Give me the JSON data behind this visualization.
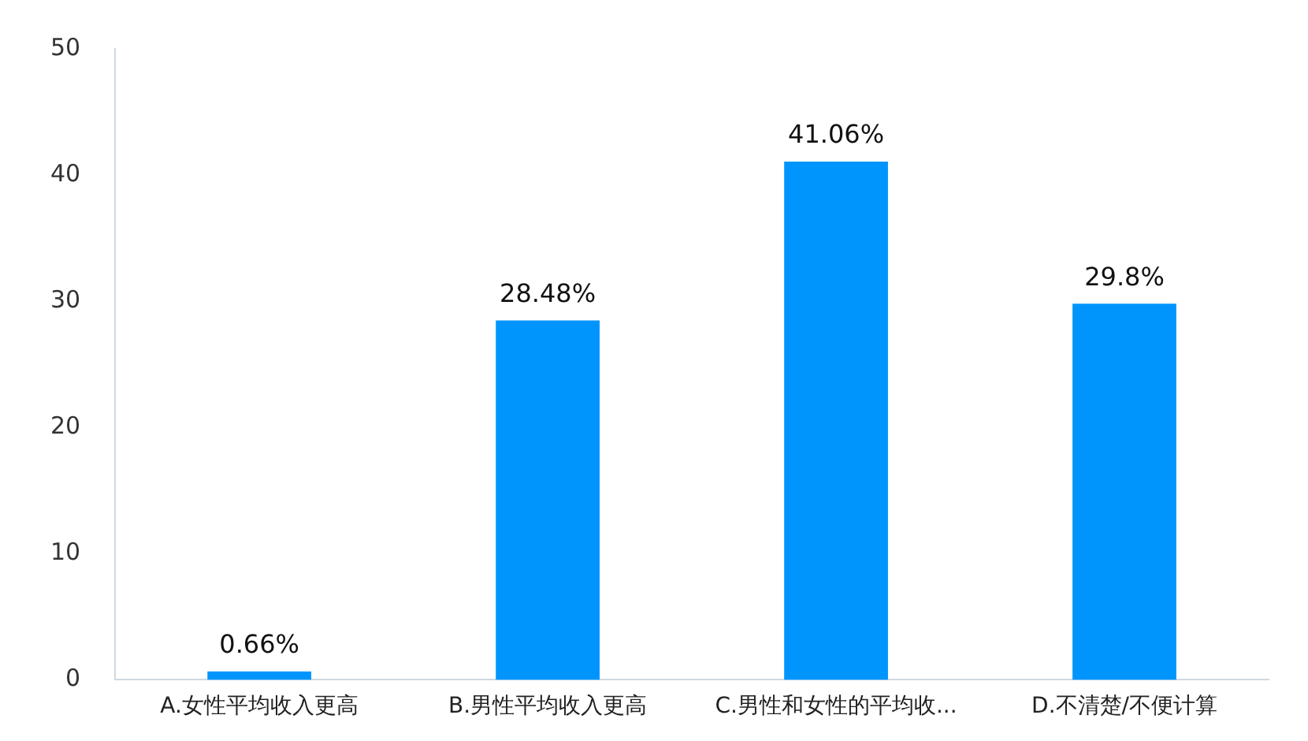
{
  "chart_data": {
    "type": "bar",
    "categories": [
      "A.女性平均收入更高",
      "B.男性平均收入更高",
      "C.男性和女性的平均收...",
      "D.不清楚/不便计算"
    ],
    "values": [
      0.66,
      28.48,
      41.06,
      29.8
    ],
    "value_labels": [
      "0.66%",
      "28.48%",
      "41.06%",
      "29.8%"
    ],
    "color": "#0095fd",
    "ylim": [
      0,
      50
    ],
    "yticks": [
      0,
      10,
      20,
      30,
      40,
      50
    ],
    "grid": false,
    "legend": false
  }
}
